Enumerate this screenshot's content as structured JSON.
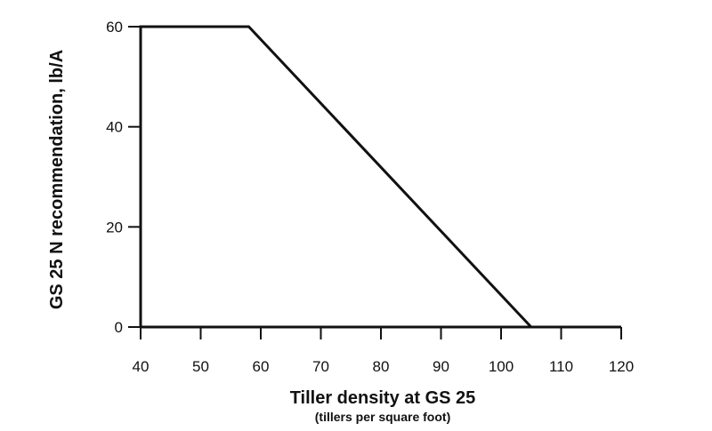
{
  "chart_data": {
    "type": "line",
    "title": "",
    "xlabel": "Tiller density at GS 25",
    "xlabel_sub": "(tillers per square foot)",
    "ylabel": "GS 25 N recommendation, lb/A",
    "xlim": [
      40,
      120
    ],
    "ylim": [
      0,
      60
    ],
    "xticks": [
      "40",
      "50",
      "60",
      "70",
      "80",
      "90",
      "100",
      "110",
      "120"
    ],
    "yticks": [
      "0",
      "20",
      "40",
      "60"
    ],
    "grid": false,
    "legend": "none",
    "series": [
      {
        "x": [
          40,
          40,
          58,
          105,
          120
        ],
        "y": [
          0,
          60,
          60,
          0,
          0
        ]
      }
    ],
    "colors": {
      "line": "#111111",
      "axis": "#111111",
      "background": "#ffffff"
    }
  }
}
